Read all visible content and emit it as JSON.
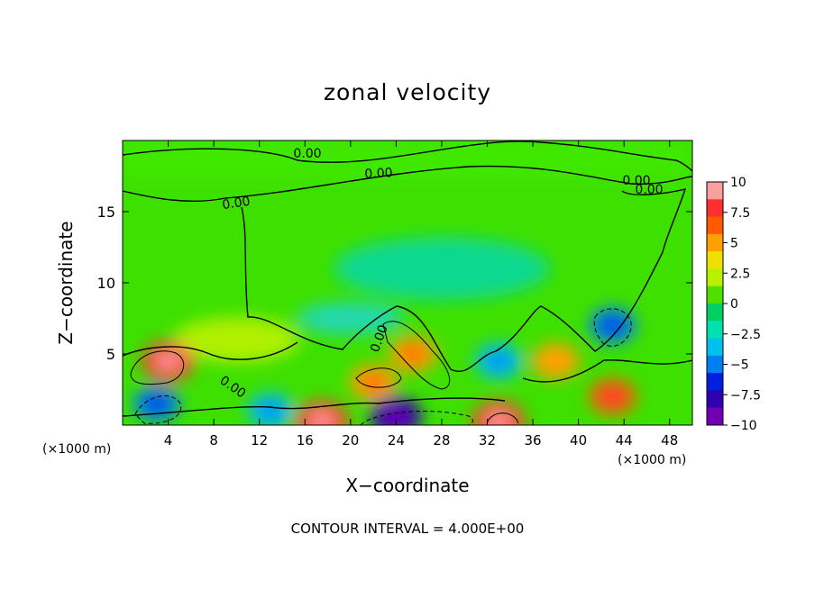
{
  "chart_data": {
    "type": "heatmap",
    "title": "zonal velocity",
    "xlabel": "X−coordinate",
    "ylabel": "Z−coordinate",
    "x_unit_label": "(×1000 m)",
    "footnote": "CONTOUR INTERVAL = 4.000E+00",
    "xlim": [
      0,
      50
    ],
    "ylim": [
      0,
      20
    ],
    "x_ticks": [
      4,
      8,
      12,
      16,
      20,
      24,
      28,
      32,
      36,
      40,
      44,
      48
    ],
    "y_ticks": [
      5,
      10,
      15
    ],
    "grid": false,
    "colorbar": {
      "ticks": [
        "10",
        "7.5",
        "5",
        "2.5",
        "0",
        "−2.5",
        "−5",
        "−7.5",
        "−10"
      ],
      "range": [
        -10,
        10
      ],
      "colors": [
        "#f8a0a0",
        "#ff3030",
        "#ff5a00",
        "#ffa000",
        "#f0e000",
        "#b8f000",
        "#50e000",
        "#00d060",
        "#00e0b0",
        "#00c0f0",
        "#0080f0",
        "#0020e0",
        "#3000b0",
        "#7000b0"
      ]
    },
    "contour_labels": [
      "0.00",
      "0.00",
      "0.00",
      "0.00",
      "0.00",
      "0.00",
      "0.00"
    ],
    "features": [
      {
        "name": "max",
        "x": 4,
        "y": 4.5,
        "value": 8
      },
      {
        "name": "max",
        "x": 17.5,
        "y": 0.3,
        "value": 8
      },
      {
        "name": "max",
        "x": 33,
        "y": 0.3,
        "value": 8
      },
      {
        "name": "max",
        "x": 25.5,
        "y": 5,
        "value": 6
      },
      {
        "name": "max",
        "x": 22,
        "y": 3,
        "value": 6
      },
      {
        "name": "max",
        "x": 43,
        "y": 2,
        "value": 7
      },
      {
        "name": "max",
        "x": 38,
        "y": 4.5,
        "value": 5
      },
      {
        "name": "min",
        "x": 3,
        "y": 1.5,
        "value": -6
      },
      {
        "name": "min",
        "x": 24,
        "y": 0.6,
        "value": -9
      },
      {
        "name": "min",
        "x": 43,
        "y": 7,
        "value": -6
      },
      {
        "name": "min",
        "x": 13,
        "y": 1,
        "value": -4
      },
      {
        "name": "min",
        "x": 33,
        "y": 4.5,
        "value": -4
      }
    ]
  }
}
